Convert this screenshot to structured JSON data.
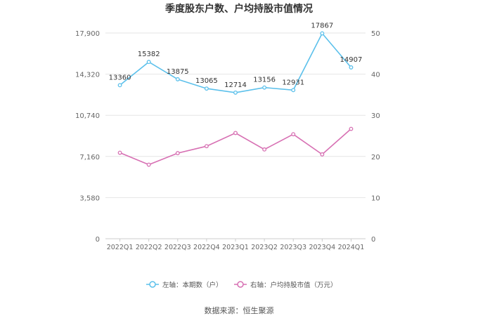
{
  "chart_data": {
    "type": "line",
    "title": "季度股东户数、户均持股市值情况",
    "categories": [
      "2022Q1",
      "2022Q2",
      "2022Q3",
      "2022Q4",
      "2023Q1",
      "2023Q2",
      "2023Q3",
      "2023Q4",
      "2024Q1"
    ],
    "left_axis": {
      "ticks": [
        "0",
        "3,580",
        "7,160",
        "10,740",
        "14,320",
        "17,900"
      ],
      "range": [
        0,
        17900
      ]
    },
    "right_axis": {
      "ticks": [
        "0",
        "10",
        "20",
        "30",
        "40",
        "50"
      ],
      "range": [
        0,
        50
      ]
    },
    "series": [
      {
        "name": "左轴：本期数（户）",
        "axis": "left",
        "color": "#5bc0eb",
        "values": [
          13360,
          15382,
          13875,
          13065,
          12714,
          13156,
          12931,
          17867,
          14907
        ],
        "labels": [
          "13360",
          "15382",
          "13875",
          "13065",
          "12714",
          "13156",
          "12931",
          "17867",
          "14907"
        ]
      },
      {
        "name": "右轴：户均持股市值（万元）",
        "axis": "right",
        "color": "#d770b3",
        "values": [
          20.9,
          18.0,
          20.8,
          22.5,
          25.7,
          21.7,
          25.4,
          20.5,
          26.7
        ]
      }
    ],
    "grid": true,
    "legend": "bottom"
  },
  "footer": {
    "source": "数据来源：恒生聚源"
  }
}
